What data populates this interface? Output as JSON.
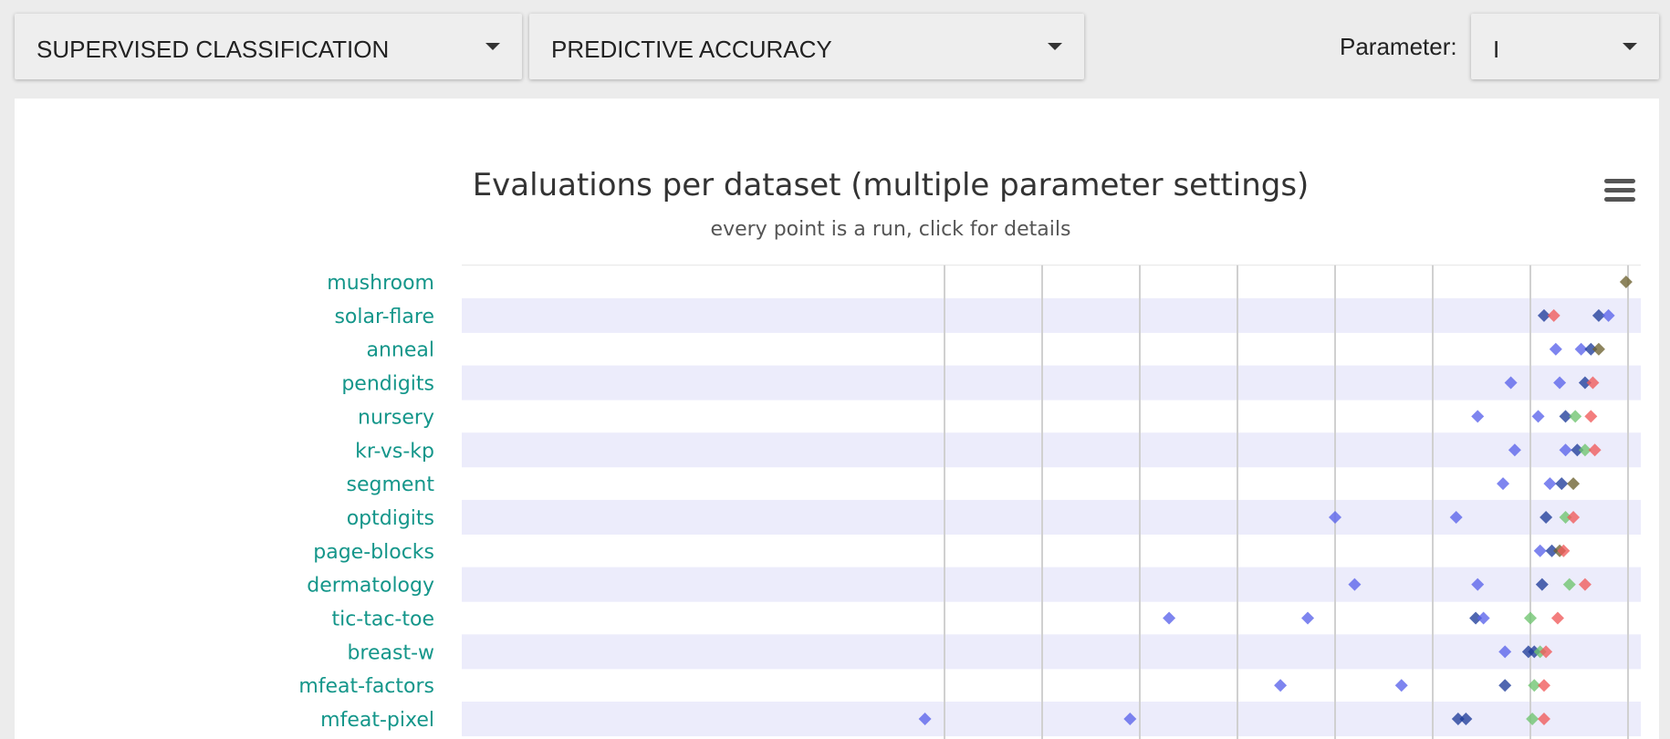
{
  "controls": {
    "task_select": "SUPERVISED CLASSIFICATION",
    "measure_select": "PREDICTIVE ACCURACY",
    "parameter_label": "Parameter:",
    "parameter_select": "I"
  },
  "colors": {
    "row_band": "#ececfb",
    "category_label": "#14968a",
    "grid": "#d0d0d0",
    "blue": "#5a63ea",
    "dark_blue": "#1f3c9a",
    "red": "#f05a5a",
    "green": "#6ec46e",
    "olive": "#6d6230"
  },
  "chart_data": {
    "type": "scatter",
    "title": "Evaluations per dataset (multiple parameter settings)",
    "subtitle": "every point is a run, click for details",
    "xlim": [
      0.23,
      1.0
    ],
    "grid": true,
    "categories": [
      "mushroom",
      "solar-flare",
      "anneal",
      "pendigits",
      "nursery",
      "kr-vs-kp",
      "segment",
      "optdigits",
      "page-blocks",
      "dermatology",
      "tic-tac-toe",
      "breast-w",
      "mfeat-factors",
      "mfeat-pixel"
    ],
    "points": [
      {
        "category": "mushroom",
        "x": 0.999,
        "color": "olive"
      },
      {
        "category": "solar-flare",
        "x": 0.957,
        "color": "dark_blue"
      },
      {
        "category": "solar-flare",
        "x": 0.962,
        "color": "red"
      },
      {
        "category": "solar-flare",
        "x": 0.985,
        "color": "dark_blue"
      },
      {
        "category": "solar-flare",
        "x": 0.99,
        "color": "blue"
      },
      {
        "category": "anneal",
        "x": 0.963,
        "color": "blue"
      },
      {
        "category": "anneal",
        "x": 0.976,
        "color": "blue"
      },
      {
        "category": "anneal",
        "x": 0.981,
        "color": "dark_blue"
      },
      {
        "category": "anneal",
        "x": 0.985,
        "color": "olive"
      },
      {
        "category": "pendigits",
        "x": 0.94,
        "color": "blue"
      },
      {
        "category": "pendigits",
        "x": 0.965,
        "color": "blue"
      },
      {
        "category": "pendigits",
        "x": 0.978,
        "color": "dark_blue"
      },
      {
        "category": "pendigits",
        "x": 0.982,
        "color": "red"
      },
      {
        "category": "nursery",
        "x": 0.923,
        "color": "blue"
      },
      {
        "category": "nursery",
        "x": 0.954,
        "color": "blue"
      },
      {
        "category": "nursery",
        "x": 0.968,
        "color": "dark_blue"
      },
      {
        "category": "nursery",
        "x": 0.973,
        "color": "green"
      },
      {
        "category": "nursery",
        "x": 0.981,
        "color": "red"
      },
      {
        "category": "kr-vs-kp",
        "x": 0.942,
        "color": "blue"
      },
      {
        "category": "kr-vs-kp",
        "x": 0.968,
        "color": "blue"
      },
      {
        "category": "kr-vs-kp",
        "x": 0.974,
        "color": "dark_blue"
      },
      {
        "category": "kr-vs-kp",
        "x": 0.978,
        "color": "green"
      },
      {
        "category": "kr-vs-kp",
        "x": 0.983,
        "color": "red"
      },
      {
        "category": "segment",
        "x": 0.936,
        "color": "blue"
      },
      {
        "category": "segment",
        "x": 0.96,
        "color": "blue"
      },
      {
        "category": "segment",
        "x": 0.966,
        "color": "dark_blue"
      },
      {
        "category": "segment",
        "x": 0.972,
        "color": "olive"
      },
      {
        "category": "optdigits",
        "x": 0.85,
        "color": "blue"
      },
      {
        "category": "optdigits",
        "x": 0.912,
        "color": "blue"
      },
      {
        "category": "optdigits",
        "x": 0.958,
        "color": "dark_blue"
      },
      {
        "category": "optdigits",
        "x": 0.968,
        "color": "green"
      },
      {
        "category": "optdigits",
        "x": 0.972,
        "color": "red"
      },
      {
        "category": "page-blocks",
        "x": 0.955,
        "color": "blue"
      },
      {
        "category": "page-blocks",
        "x": 0.961,
        "color": "dark_blue"
      },
      {
        "category": "page-blocks",
        "x": 0.965,
        "color": "olive"
      },
      {
        "category": "page-blocks",
        "x": 0.967,
        "color": "red"
      },
      {
        "category": "dermatology",
        "x": 0.86,
        "color": "blue"
      },
      {
        "category": "dermatology",
        "x": 0.923,
        "color": "blue"
      },
      {
        "category": "dermatology",
        "x": 0.956,
        "color": "dark_blue"
      },
      {
        "category": "dermatology",
        "x": 0.97,
        "color": "green"
      },
      {
        "category": "dermatology",
        "x": 0.978,
        "color": "red"
      },
      {
        "category": "tic-tac-toe",
        "x": 0.765,
        "color": "blue"
      },
      {
        "category": "tic-tac-toe",
        "x": 0.836,
        "color": "blue"
      },
      {
        "category": "tic-tac-toe",
        "x": 0.922,
        "color": "dark_blue"
      },
      {
        "category": "tic-tac-toe",
        "x": 0.926,
        "color": "blue"
      },
      {
        "category": "tic-tac-toe",
        "x": 0.95,
        "color": "green"
      },
      {
        "category": "tic-tac-toe",
        "x": 0.964,
        "color": "red"
      },
      {
        "category": "breast-w",
        "x": 0.937,
        "color": "blue"
      },
      {
        "category": "breast-w",
        "x": 0.949,
        "color": "dark_blue"
      },
      {
        "category": "breast-w",
        "x": 0.952,
        "color": "dark_blue"
      },
      {
        "category": "breast-w",
        "x": 0.955,
        "color": "green"
      },
      {
        "category": "breast-w",
        "x": 0.958,
        "color": "red"
      },
      {
        "category": "mfeat-factors",
        "x": 0.822,
        "color": "blue"
      },
      {
        "category": "mfeat-factors",
        "x": 0.884,
        "color": "blue"
      },
      {
        "category": "mfeat-factors",
        "x": 0.937,
        "color": "dark_blue"
      },
      {
        "category": "mfeat-factors",
        "x": 0.952,
        "color": "green"
      },
      {
        "category": "mfeat-factors",
        "x": 0.957,
        "color": "red"
      },
      {
        "category": "mfeat-pixel",
        "x": 0.64,
        "color": "blue"
      },
      {
        "category": "mfeat-pixel",
        "x": 0.745,
        "color": "blue"
      },
      {
        "category": "mfeat-pixel",
        "x": 0.913,
        "color": "dark_blue"
      },
      {
        "category": "mfeat-pixel",
        "x": 0.917,
        "color": "dark_blue"
      },
      {
        "category": "mfeat-pixel",
        "x": 0.951,
        "color": "green"
      },
      {
        "category": "mfeat-pixel",
        "x": 0.957,
        "color": "red"
      }
    ]
  }
}
